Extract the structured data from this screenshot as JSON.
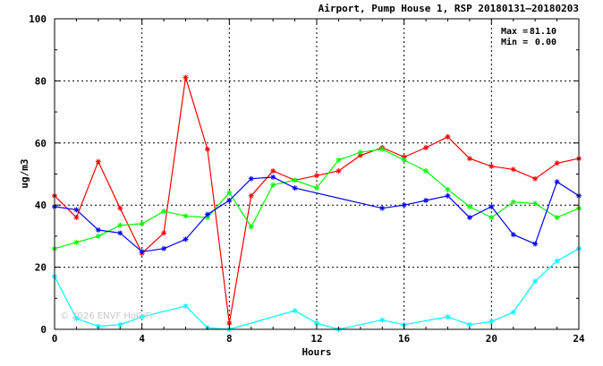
{
  "chart_data": {
    "type": "line",
    "title": "Airport, Pump House 1, RSP 20180131–20180203",
    "xlabel": "Hours",
    "ylabel": "ug/m3",
    "xlim": [
      0,
      24
    ],
    "ylim": [
      0,
      100
    ],
    "x_ticks": [
      0,
      4,
      8,
      12,
      16,
      20,
      24
    ],
    "y_ticks": [
      0,
      20,
      40,
      60,
      80,
      100
    ],
    "grid": "dashed vertical at 4-hour intervals; dashed horizontal at 20 ug/m3 intervals",
    "stats": {
      "max_label": "Max =",
      "max_value": "81.10",
      "min_label": "Min =",
      "min_value": "0.00"
    },
    "watermark": "© 2026 ENVF HoGiFi",
    "series": [
      {
        "color": "#ff0000",
        "x": [
          0,
          1,
          2,
          3,
          4,
          5,
          6,
          7,
          8,
          9,
          10,
          11,
          12,
          13,
          14,
          15,
          16,
          17,
          18,
          19,
          20,
          21,
          22,
          23,
          24
        ],
        "values": [
          43,
          36,
          54,
          39,
          24.5,
          31,
          81.1,
          58,
          2,
          43,
          51,
          48,
          49.5,
          51,
          56,
          58.5,
          55.5,
          58.5,
          62,
          55,
          52.5,
          51.5,
          48.5,
          53.5,
          55
        ]
      },
      {
        "color": "#00ff00",
        "x": [
          0,
          1,
          2,
          3,
          4,
          5,
          6,
          7,
          8,
          9,
          10,
          11,
          12,
          13,
          14,
          15,
          16,
          17,
          18,
          19,
          20,
          21,
          22,
          23,
          24
        ],
        "values": [
          26,
          28,
          30,
          33.5,
          34,
          38,
          36.5,
          36,
          44,
          33,
          46.5,
          48,
          45.5,
          54.5,
          57,
          58,
          54.5,
          51,
          45,
          39.5,
          36,
          41,
          40.5,
          36,
          39
        ]
      },
      {
        "color": "#0000ff",
        "x": [
          0,
          1,
          2,
          3,
          4,
          5,
          6,
          7,
          8,
          9,
          10,
          11,
          15,
          16,
          17,
          18,
          19,
          20,
          21,
          22,
          23,
          24
        ],
        "values": [
          39.5,
          38.5,
          32,
          31,
          25,
          26,
          29,
          37,
          41.5,
          48.5,
          49,
          45.5,
          39,
          40,
          41.5,
          43,
          36,
          39.5,
          30.5,
          27.5,
          47.5,
          43
        ]
      },
      {
        "color": "#00ffff",
        "x": [
          0,
          1,
          2,
          3,
          4,
          6,
          7,
          8,
          11,
          12,
          13,
          15,
          16,
          18,
          19,
          20,
          21,
          22,
          23,
          24
        ],
        "values": [
          17,
          3.5,
          1,
          1.5,
          4,
          7.5,
          0.5,
          0,
          6,
          2,
          0,
          3,
          1.5,
          4,
          1.5,
          2.5,
          5.5,
          15.5,
          22,
          26
        ]
      }
    ]
  }
}
